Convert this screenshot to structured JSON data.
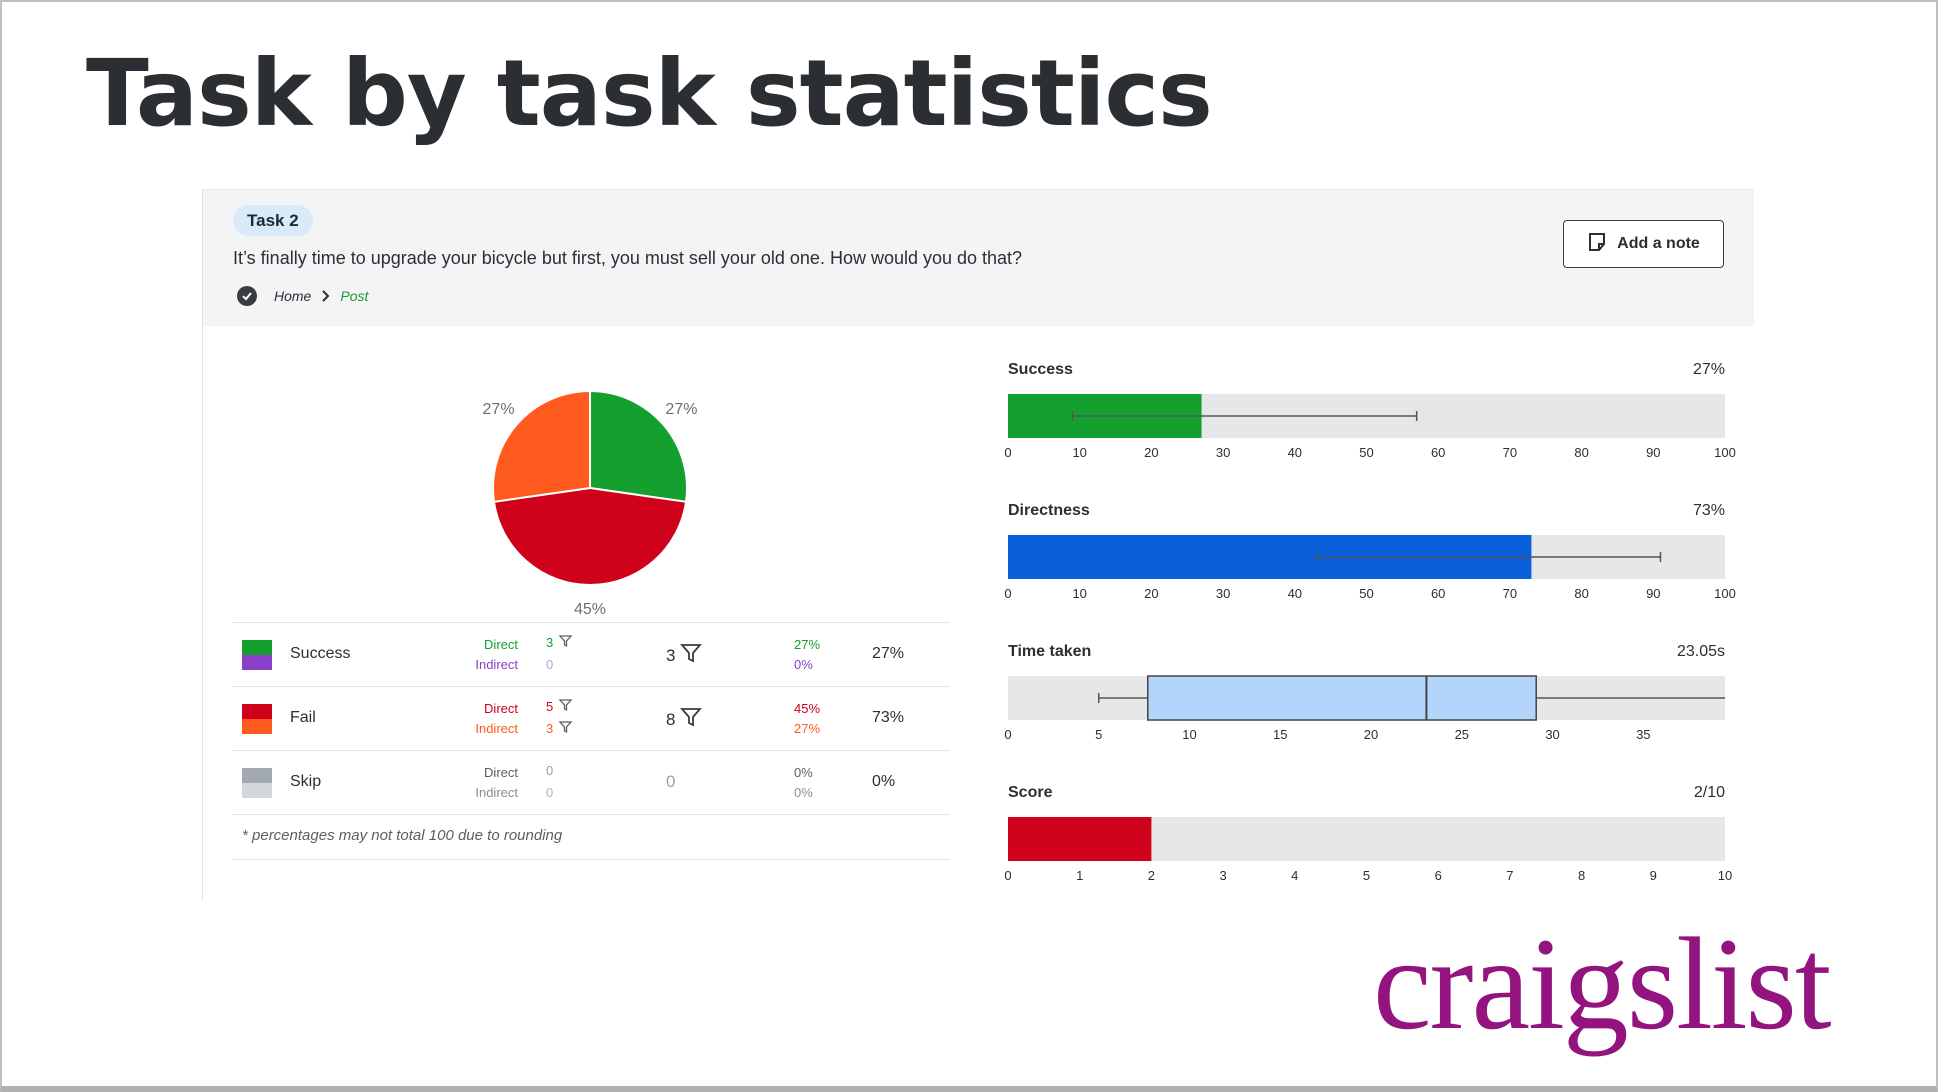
{
  "page": {
    "title": "Task by task statistics"
  },
  "task": {
    "badge": "Task 2",
    "question": "It’s finally time to upgrade your bicycle but first, you must sell your old one. How would you do that?",
    "path_home": "Home",
    "path_post": "Post",
    "add_note_label": "Add a note"
  },
  "table": {
    "rows": [
      {
        "label": "Success",
        "direct_label": "Direct",
        "indirect_label": "Indirect",
        "direct": "3",
        "indirect": "0",
        "total": "3",
        "direct_pct": "27%",
        "indirect_pct": "0%",
        "pct": "27%"
      },
      {
        "label": "Fail",
        "direct_label": "Direct",
        "indirect_label": "Indirect",
        "direct": "5",
        "indirect": "3",
        "total": "8",
        "direct_pct": "45%",
        "indirect_pct": "27%",
        "pct": "73%"
      },
      {
        "label": "Skip",
        "direct_label": "Direct",
        "indirect_label": "Indirect",
        "direct": "0",
        "indirect": "0",
        "total": "0",
        "direct_pct": "0%",
        "indirect_pct": "0%",
        "pct": "0%"
      }
    ],
    "footnote": "* percentages may not total 100 due to rounding"
  },
  "colors": {
    "success": "#13a02f",
    "success_indirect": "#8a3fc9",
    "fail": "#d0021b",
    "fail_indirect": "#ff5b1f",
    "skip": "#a3a9b1",
    "skip_indirect": "#d3d6da",
    "directness": "#0a5fdb",
    "box": "#b3d5fb",
    "track": "#e6e7e9",
    "logo": "#94147f"
  },
  "logo": {
    "text": "craigslist"
  },
  "chart_data": [
    {
      "type": "pie",
      "slices": [
        {
          "name": "Success",
          "value": 27,
          "label": "27%",
          "color": "#13a02f"
        },
        {
          "name": "Fail direct",
          "value": 45,
          "label": "45%",
          "color": "#d0021b"
        },
        {
          "name": "Fail indirect",
          "value": 27,
          "label": "27%",
          "color": "#ff5b1f"
        }
      ]
    },
    {
      "type": "bar",
      "title": "Success",
      "value_label": "27%",
      "value": 27,
      "error_low": 9,
      "error_high": 57,
      "xlim": [
        0,
        100
      ],
      "ticks": [
        "0",
        "10",
        "20",
        "30",
        "40",
        "50",
        "60",
        "70",
        "80",
        "90",
        "100"
      ],
      "color": "#13a02f"
    },
    {
      "type": "bar",
      "title": "Directness",
      "value_label": "73%",
      "value": 73,
      "error_low": 43,
      "error_high": 91,
      "xlim": [
        0,
        100
      ],
      "ticks": [
        "0",
        "10",
        "20",
        "30",
        "40",
        "50",
        "60",
        "70",
        "80",
        "90",
        "100"
      ],
      "color": "#0a5fdb"
    },
    {
      "type": "box",
      "title": "Time taken",
      "value_label": "23.05s",
      "min": 5,
      "q1": 7.7,
      "median": 23.05,
      "q3": 29.1,
      "max": 39.5,
      "xlim": [
        0,
        39.5
      ],
      "ticks": [
        "0",
        "5",
        "10",
        "15",
        "20",
        "25",
        "30",
        "35"
      ],
      "color": "#b3d5fb"
    },
    {
      "type": "bar",
      "title": "Score",
      "value_label": "2/10",
      "value": 2,
      "xlim": [
        0,
        10
      ],
      "ticks": [
        "0",
        "1",
        "2",
        "3",
        "4",
        "5",
        "6",
        "7",
        "8",
        "9",
        "10"
      ],
      "color": "#d0021b"
    }
  ]
}
